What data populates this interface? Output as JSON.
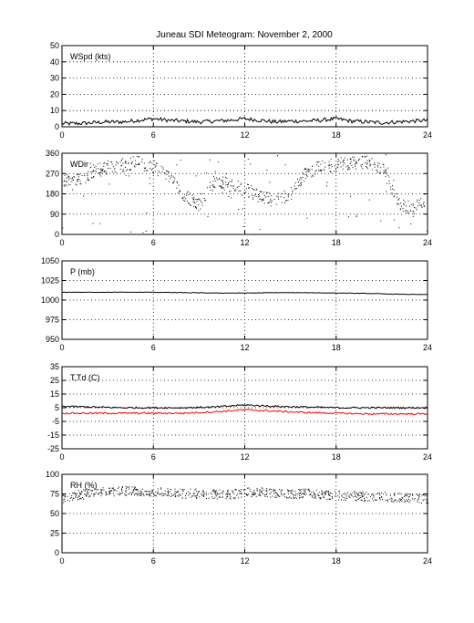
{
  "title": "Juneau SDI Meteogram:  November  2, 2000",
  "chart_data": [
    {
      "type": "line",
      "label": "WSpd (kts)",
      "ylim": [
        0,
        50
      ],
      "yticks": [
        0,
        10,
        20,
        30,
        40,
        50
      ],
      "xlim": [
        0,
        24
      ],
      "xticks": [
        0,
        6,
        12,
        18,
        24
      ],
      "grid": true,
      "series": [
        {
          "color": "#000000",
          "x": [
            0,
            1,
            2,
            3,
            4,
            5,
            6,
            7,
            8,
            9,
            10,
            11,
            12,
            13,
            14,
            15,
            16,
            17,
            18,
            19,
            20,
            21,
            22,
            23,
            24
          ],
          "y": [
            2,
            2,
            2.5,
            3,
            3,
            4,
            5,
            4,
            3.5,
            3,
            3.5,
            4,
            5,
            4,
            3,
            3.5,
            3.5,
            4,
            5,
            3.5,
            3,
            2.5,
            3,
            3.5,
            4
          ]
        }
      ]
    },
    {
      "type": "scatter",
      "label": "WDir",
      "ylim": [
        0,
        360
      ],
      "yticks": [
        0,
        90,
        180,
        270,
        360
      ],
      "xlim": [
        0,
        24
      ],
      "xticks": [
        0,
        6,
        12,
        18,
        24
      ],
      "grid": true,
      "series": [
        {
          "color": "#000000",
          "x": [
            0,
            1,
            2,
            3,
            4,
            5,
            6,
            7,
            8,
            9,
            10,
            11,
            12,
            13,
            14,
            15,
            16,
            17,
            18,
            19,
            20,
            21,
            22,
            23,
            24
          ],
          "y": [
            250,
            240,
            280,
            300,
            310,
            320,
            300,
            250,
            180,
            130,
            240,
            220,
            200,
            170,
            150,
            180,
            280,
            300,
            310,
            320,
            320,
            300,
            150,
            110,
            170
          ]
        }
      ]
    },
    {
      "type": "line",
      "label": "P (mb)",
      "ylim": [
        950,
        1050
      ],
      "yticks": [
        950,
        975,
        1000,
        1025,
        1050
      ],
      "xlim": [
        0,
        24
      ],
      "xticks": [
        0,
        6,
        12,
        18,
        24
      ],
      "grid": true,
      "series": [
        {
          "color": "#000000",
          "x": [
            0,
            2,
            4,
            6,
            8,
            10,
            12,
            14,
            16,
            18,
            20,
            22,
            24
          ],
          "y": [
            1010,
            1010,
            1010,
            1010,
            1009.5,
            1009,
            1009,
            1009.5,
            1009.5,
            1009,
            1008.5,
            1007.5,
            1007
          ]
        }
      ]
    },
    {
      "type": "line",
      "label": "T,Td (C)",
      "ylim": [
        -25,
        35
      ],
      "yticks": [
        -25,
        -15,
        -5,
        5,
        15,
        25,
        35
      ],
      "xlim": [
        0,
        24
      ],
      "xticks": [
        0,
        6,
        12,
        18,
        24
      ],
      "grid": true,
      "series": [
        {
          "color": "#000000",
          "x": [
            0,
            2,
            4,
            6,
            8,
            10,
            12,
            14,
            16,
            18,
            20,
            22,
            24
          ],
          "y": [
            6,
            5.5,
            5,
            5,
            5,
            5.5,
            7,
            6,
            5.5,
            5,
            5,
            5,
            5
          ]
        },
        {
          "color": "#ff0000",
          "x": [
            0,
            2,
            4,
            6,
            8,
            10,
            12,
            14,
            16,
            18,
            20,
            22,
            24
          ],
          "y": [
            1,
            1,
            1,
            1,
            1,
            2,
            3.5,
            2.5,
            1.5,
            1,
            0.5,
            0.5,
            0.5
          ]
        }
      ]
    },
    {
      "type": "scatter",
      "label": "RH (%)",
      "ylim": [
        0,
        100
      ],
      "yticks": [
        0,
        25,
        50,
        75,
        100
      ],
      "xlim": [
        0,
        24
      ],
      "xticks": [
        0,
        6,
        12,
        18,
        24
      ],
      "grid": true,
      "series": [
        {
          "color": "#000000",
          "x": [
            0,
            1,
            2,
            3,
            4,
            5,
            6,
            7,
            8,
            9,
            10,
            11,
            12,
            13,
            14,
            15,
            16,
            17,
            18,
            19,
            20,
            21,
            22,
            23,
            24
          ],
          "y": [
            68,
            74,
            77,
            78,
            79,
            79,
            78,
            77,
            76,
            76,
            75,
            75,
            77,
            78,
            76,
            75,
            77,
            75,
            74,
            73,
            72,
            72,
            71,
            70,
            69
          ]
        }
      ]
    }
  ]
}
